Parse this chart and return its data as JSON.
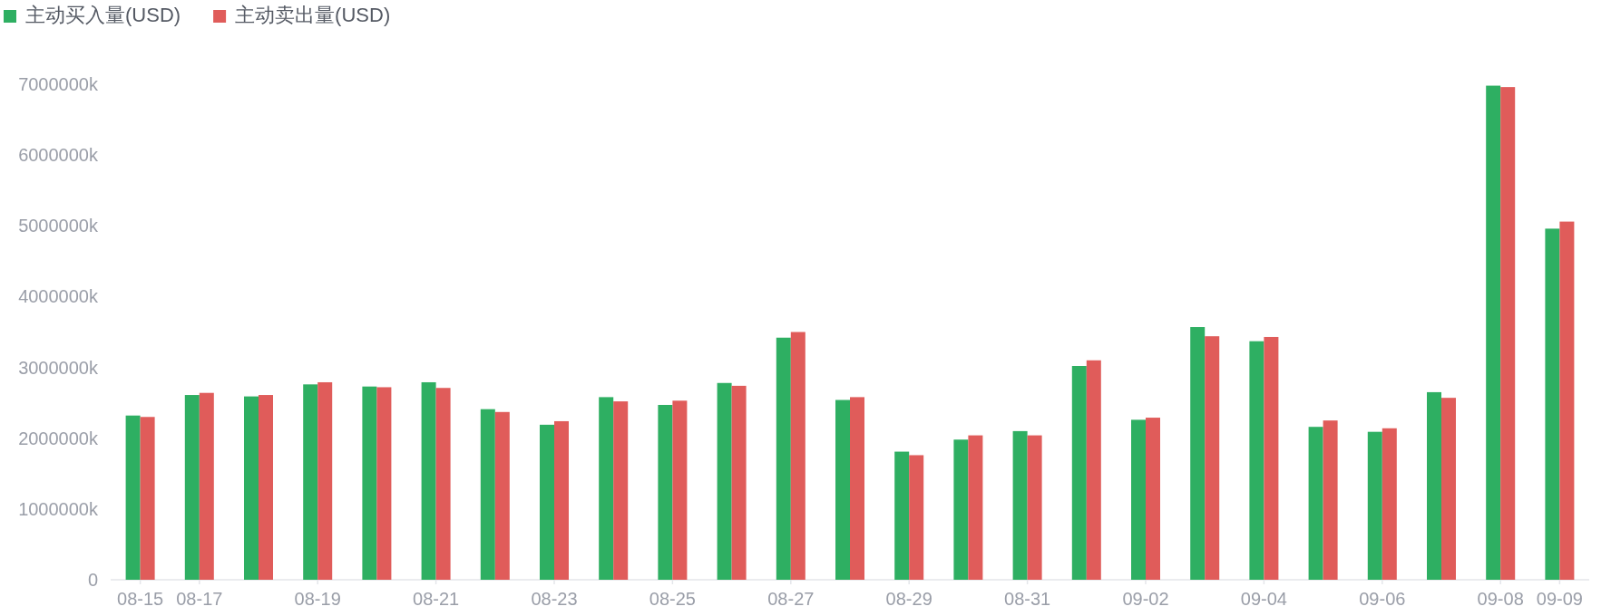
{
  "chart_data": {
    "type": "bar",
    "categories": [
      "08-15",
      "08-17",
      null,
      "08-19",
      null,
      "08-21",
      null,
      "08-23",
      null,
      "08-25",
      null,
      "08-27",
      null,
      "08-29",
      null,
      "08-31",
      null,
      "09-02",
      null,
      "09-04",
      null,
      "09-06",
      null,
      "09-08",
      "09-09"
    ],
    "series": [
      {
        "name": "主动买入量(USD)",
        "color": "#2eaf62",
        "values": [
          2320000,
          2610000,
          2590000,
          2760000,
          2730000,
          2790000,
          2410000,
          2190000,
          2580000,
          2470000,
          2780000,
          3420000,
          2540000,
          1810000,
          1980000,
          2100000,
          3020000,
          2260000,
          3570000,
          3370000,
          2160000,
          2090000,
          2650000,
          6980000,
          4960000
        ]
      },
      {
        "name": "主动卖出量(USD)",
        "color": "#e05c5a",
        "values": [
          2300000,
          2640000,
          2610000,
          2790000,
          2720000,
          2710000,
          2370000,
          2240000,
          2520000,
          2530000,
          2740000,
          3500000,
          2580000,
          1760000,
          2040000,
          2040000,
          3100000,
          2290000,
          3440000,
          3430000,
          2250000,
          2140000,
          2570000,
          6960000,
          5060000
        ]
      }
    ],
    "ylim": [
      0,
      7000000
    ],
    "yticks": [
      0,
      {
        "value": 1000000,
        "label": "1000000k"
      },
      {
        "value": 2000000,
        "label": "2000000k"
      },
      {
        "value": 3000000,
        "label": "3000000k"
      },
      {
        "value": 4000000,
        "label": "4000000k"
      },
      {
        "value": 5000000,
        "label": "5000000k"
      },
      {
        "value": 6000000,
        "label": "6000000k"
      },
      {
        "value": 7000000,
        "label": "7000000k"
      }
    ],
    "legend": "top left"
  }
}
